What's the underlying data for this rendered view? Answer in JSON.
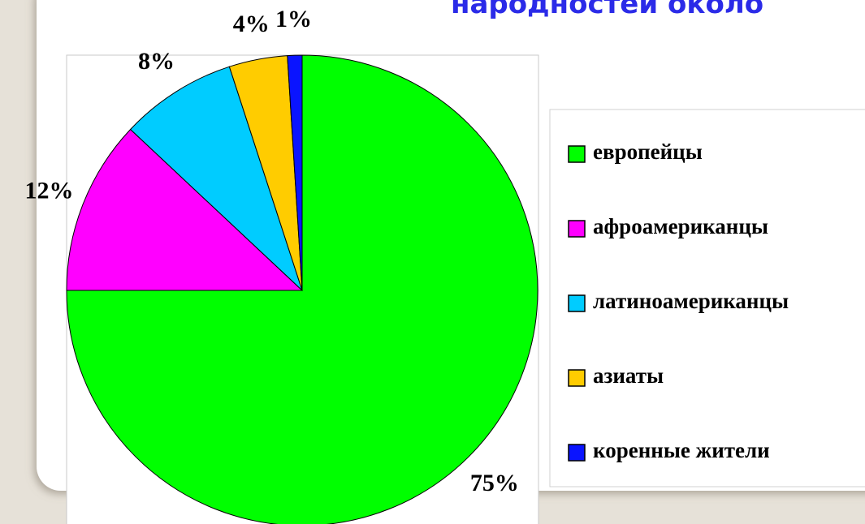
{
  "chart_data": {
    "type": "pie",
    "title": "народностей около",
    "categories": [
      "европейцы",
      "афроамериканцы",
      "латиноамериканцы",
      "азиаты",
      "коренные жители"
    ],
    "values": [
      75,
      12,
      8,
      4,
      1
    ],
    "value_labels": [
      "75%",
      "12%",
      "8%",
      "4%",
      "1%"
    ],
    "colors": [
      "#00ff00",
      "#ff00ff",
      "#00ccff",
      "#ffcc00",
      "#0a14ff"
    ],
    "legend": "right"
  }
}
